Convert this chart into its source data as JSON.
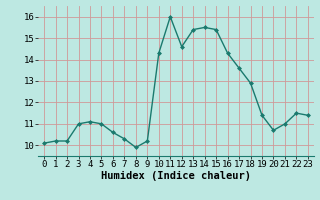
{
  "x": [
    0,
    1,
    2,
    3,
    4,
    5,
    6,
    7,
    8,
    9,
    10,
    11,
    12,
    13,
    14,
    15,
    16,
    17,
    18,
    19,
    20,
    21,
    22,
    23
  ],
  "y": [
    10.1,
    10.2,
    10.2,
    11.0,
    11.1,
    11.0,
    10.6,
    10.3,
    9.9,
    10.2,
    14.3,
    16.0,
    14.6,
    15.4,
    15.5,
    15.4,
    14.3,
    13.6,
    12.9,
    11.4,
    10.7,
    11.0,
    11.5,
    11.4
  ],
  "line_color": "#1a7a6e",
  "marker": "D",
  "marker_size": 2.0,
  "bg_color": "#bde8e2",
  "grid_color": "#d09898",
  "xlabel": "Humidex (Indice chaleur)",
  "xlabel_fontsize": 7.5,
  "ylim": [
    9.5,
    16.5
  ],
  "xlim": [
    -0.5,
    23.5
  ],
  "yticks": [
    10,
    11,
    12,
    13,
    14,
    15,
    16
  ],
  "xticks": [
    0,
    1,
    2,
    3,
    4,
    5,
    6,
    7,
    8,
    9,
    10,
    11,
    12,
    13,
    14,
    15,
    16,
    17,
    18,
    19,
    20,
    21,
    22,
    23
  ],
  "tick_fontsize": 6.5
}
